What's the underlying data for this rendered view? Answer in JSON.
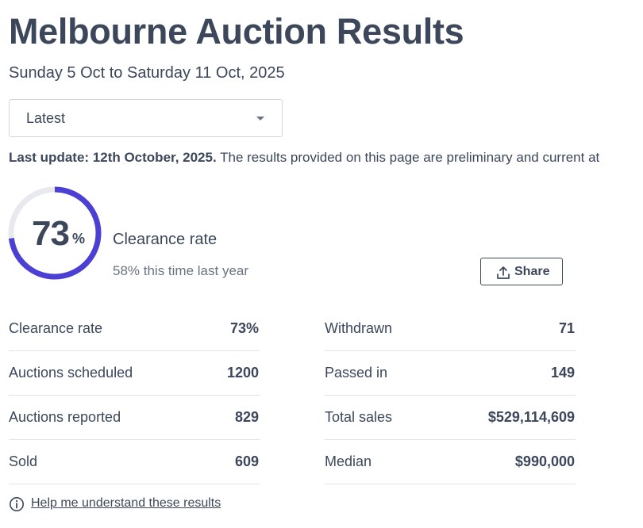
{
  "header": {
    "title": "Melbourne Auction Results",
    "date_range": "Sunday 5 Oct to Saturday 11 Oct, 2025"
  },
  "period_select": {
    "value": "Latest"
  },
  "update_notice": {
    "bold": "Last update: 12th October, 2025.",
    "text": " The results provided on this page are preliminary and current at"
  },
  "summary": {
    "clearance_value": "73",
    "clearance_unit": "%",
    "clearance_fraction": 0.73,
    "label": "Clearance rate",
    "last_year": "58% this time last year",
    "share_label": "Share"
  },
  "stats_left": [
    {
      "label": "Clearance rate",
      "value": "73%"
    },
    {
      "label": "Auctions scheduled",
      "value": "1200"
    },
    {
      "label": "Auctions reported",
      "value": "829"
    },
    {
      "label": "Sold",
      "value": "609"
    }
  ],
  "stats_right": [
    {
      "label": "Withdrawn",
      "value": "71"
    },
    {
      "label": "Passed in",
      "value": "149"
    },
    {
      "label": "Total sales",
      "value": "$529,114,609"
    },
    {
      "label": "Median",
      "value": "$990,000"
    }
  ],
  "help_link": {
    "label": "Help me understand these results",
    "icon": "info-icon"
  },
  "colors": {
    "gauge_fill": "#4b3fd4",
    "gauge_track": "#e7e9ee",
    "text": "#3c475b"
  }
}
